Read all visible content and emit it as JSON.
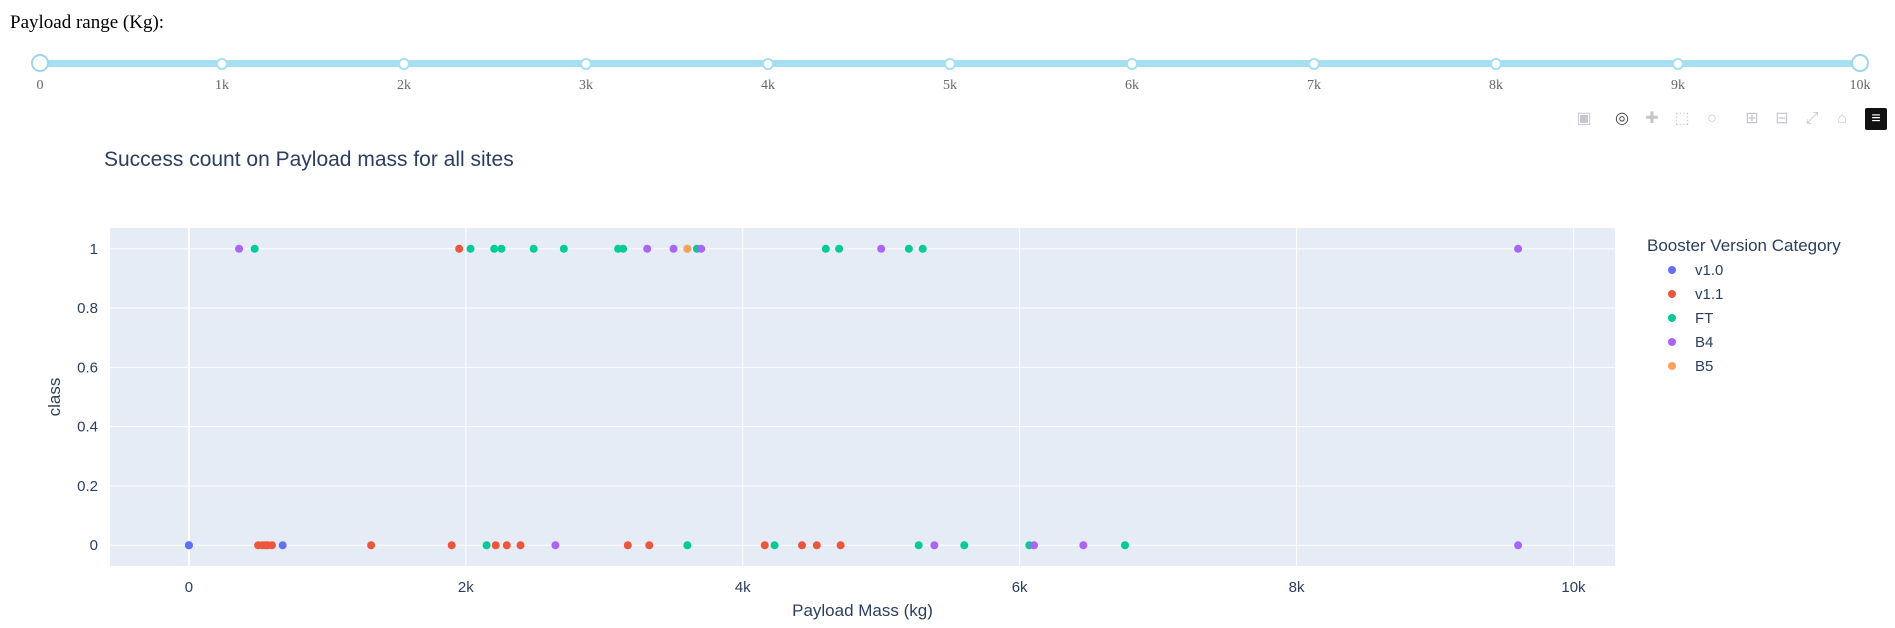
{
  "slider": {
    "label": "Payload range (Kg):",
    "min": 0,
    "max": 10000,
    "value_low": 0,
    "value_high": 10000,
    "marks": [
      "0",
      "1k",
      "2k",
      "3k",
      "4k",
      "5k",
      "6k",
      "7k",
      "8k",
      "9k",
      "10k"
    ],
    "color": "#a7dff2"
  },
  "modebar": {
    "icons": [
      "camera-icon",
      "zoom-icon",
      "pan-icon",
      "box-select-icon",
      "lasso-icon",
      "zoom-in-icon",
      "zoom-out-icon",
      "autoscale-icon",
      "home-icon",
      "plotly-logo-icon"
    ]
  },
  "chart_data": {
    "type": "scatter",
    "title": "Success count on Payload mass for all sites",
    "xlabel": "Payload Mass (kg)",
    "ylabel": "class",
    "xlim": [
      -570,
      10300
    ],
    "ylim": [
      -0.07,
      1.07
    ],
    "x_ticks": [
      0,
      2000,
      4000,
      6000,
      8000,
      10000
    ],
    "x_tick_labels": [
      "0",
      "2k",
      "4k",
      "6k",
      "8k",
      "10k"
    ],
    "y_ticks": [
      0,
      0.2,
      0.4,
      0.6,
      0.8,
      1
    ],
    "y_tick_labels": [
      "0",
      "0.2",
      "0.4",
      "0.6",
      "0.8",
      "1"
    ],
    "legend_title": "Booster Version Category",
    "legend_position": "right",
    "series": [
      {
        "name": "v1.0",
        "color": "#636efa",
        "points": [
          [
            0,
            0
          ],
          [
            0,
            0
          ],
          [
            677,
            0
          ]
        ]
      },
      {
        "name": "v1.1",
        "color": "#ef553b",
        "points": [
          [
            1952,
            1
          ],
          [
            500,
            0
          ],
          [
            530,
            0
          ],
          [
            553,
            0
          ],
          [
            570,
            0
          ],
          [
            600,
            0
          ],
          [
            1316,
            0
          ],
          [
            1898,
            0
          ],
          [
            2216,
            0
          ],
          [
            2296,
            0
          ],
          [
            2395,
            0
          ],
          [
            3170,
            0
          ],
          [
            3325,
            0
          ],
          [
            4159,
            0
          ],
          [
            4428,
            0
          ],
          [
            4535,
            0
          ],
          [
            4707,
            0
          ]
        ]
      },
      {
        "name": "FT",
        "color": "#00cc96",
        "points": [
          [
            475,
            1
          ],
          [
            2034,
            1
          ],
          [
            2205,
            1
          ],
          [
            2257,
            1
          ],
          [
            2490,
            1
          ],
          [
            2708,
            1
          ],
          [
            3100,
            1
          ],
          [
            3136,
            1
          ],
          [
            3600,
            1
          ],
          [
            3669,
            1
          ],
          [
            4600,
            1
          ],
          [
            4696,
            1
          ],
          [
            5200,
            1
          ],
          [
            5300,
            1
          ],
          [
            2150,
            0
          ],
          [
            3600,
            0
          ],
          [
            4230,
            0
          ],
          [
            5271,
            0
          ],
          [
            5600,
            0
          ],
          [
            6070,
            0
          ],
          [
            6761,
            0
          ]
        ]
      },
      {
        "name": "B4",
        "color": "#ab63fa",
        "points": [
          [
            362,
            1
          ],
          [
            3310,
            1
          ],
          [
            3500,
            1
          ],
          [
            3700,
            1
          ],
          [
            5000,
            1
          ],
          [
            9600,
            1
          ],
          [
            2647,
            0
          ],
          [
            5384,
            0
          ],
          [
            6104,
            0
          ],
          [
            6460,
            0
          ],
          [
            9600,
            0
          ]
        ]
      },
      {
        "name": "B5",
        "color": "#ffa15a",
        "points": [
          [
            3600,
            1
          ]
        ]
      }
    ]
  }
}
